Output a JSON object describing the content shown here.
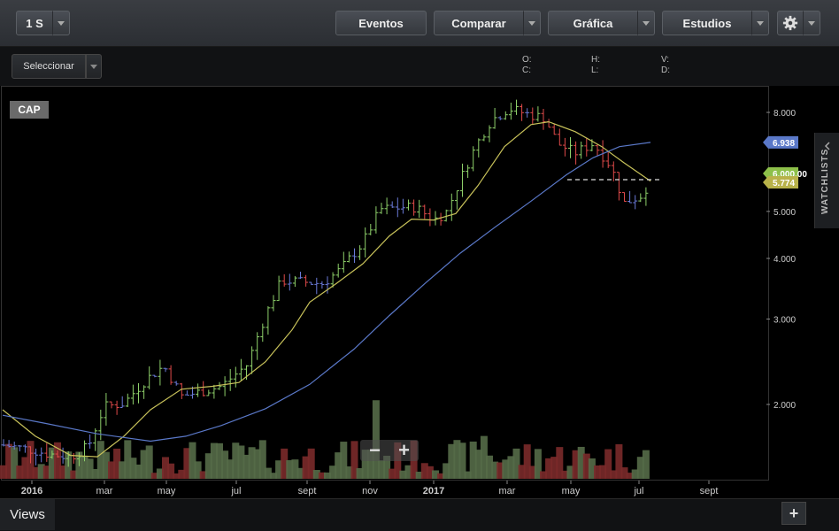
{
  "toolbar": {
    "interval": "1 S",
    "events": "Eventos",
    "compare": "Comparar",
    "chart": "Gráfica",
    "studies": "Estudios"
  },
  "selector": {
    "label": "Seleccionar"
  },
  "ohlc": {
    "o": "O:",
    "h": "H:",
    "v": "V:",
    "c": "C:",
    "l": "L:",
    "d": "D:"
  },
  "symbol": "CAP",
  "watchlists_label": "WATCHLISTS",
  "footer": {
    "views_label": "Views",
    "add_label": "+"
  },
  "zoom": {
    "minus": "−",
    "plus": "+"
  },
  "chart_data": {
    "type": "ohlc-bar",
    "yscale": "log",
    "y_ticks": [
      {
        "label": "8.000",
        "value": 8000
      },
      {
        "label": "6.000,00",
        "value": 6000
      },
      {
        "label": "5.000",
        "value": 5000
      },
      {
        "label": "4.000",
        "value": 4000
      },
      {
        "label": "3.000",
        "value": 3000
      },
      {
        "label": "2.000",
        "value": 2000
      }
    ],
    "x_ticks": [
      "2016",
      "mar",
      "may",
      "jul",
      "sept",
      "nov",
      "2017",
      "mar",
      "may",
      "jul",
      "sept"
    ],
    "price_tags": [
      {
        "label": "6.938",
        "value": 6938,
        "color": "#5a78c8"
      },
      {
        "label": "6.000,00",
        "value": 6000,
        "color": "#8dc04a"
      },
      {
        "label": "5.774",
        "value": 5774,
        "color": "#b8b24a"
      }
    ],
    "moving_averages": [
      {
        "color": "#c8c25a"
      },
      {
        "color": "#5a78c8"
      }
    ],
    "colors": {
      "up": "#8ed06a",
      "down": "#e04a4a",
      "neutral": "#6a7ad8",
      "vol_up": "#556b48",
      "vol_down": "#7a2a2a"
    }
  }
}
